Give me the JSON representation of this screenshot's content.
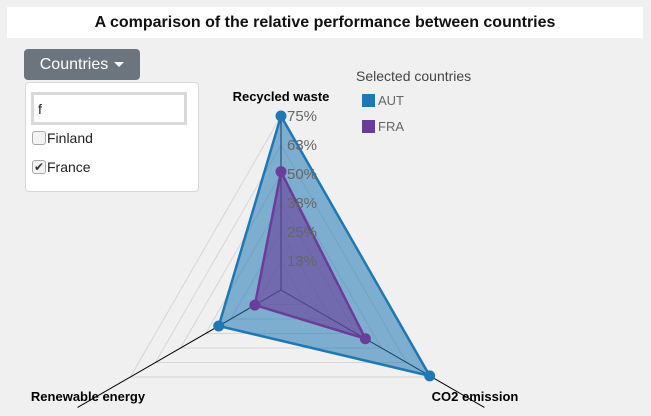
{
  "title": "A comparison of the relative performance between countries",
  "dropdown": {
    "label": "Countries",
    "filter_value": "f",
    "options": [
      {
        "label": "Finland",
        "checked": false
      },
      {
        "label": "France",
        "checked": true
      }
    ]
  },
  "legend": {
    "title": "Selected countries",
    "items": [
      {
        "label": "AUT",
        "color": "#1f77b4"
      },
      {
        "label": "FRA",
        "color": "#6a3d9a"
      }
    ]
  },
  "chart_data": {
    "type": "radar",
    "axes": [
      "Recycled waste",
      "CO2 emission",
      "Renewable energy"
    ],
    "ticks": [
      "13%",
      "25%",
      "38%",
      "50%",
      "63%",
      "75%"
    ],
    "range": [
      0,
      75
    ],
    "grid": true,
    "series": [
      {
        "name": "AUT",
        "color": "#1f77b4",
        "values": [
          75,
          74,
          31
        ]
      },
      {
        "name": "FRA",
        "color": "#6a3d9a",
        "values": [
          51,
          42,
          13
        ]
      }
    ]
  }
}
